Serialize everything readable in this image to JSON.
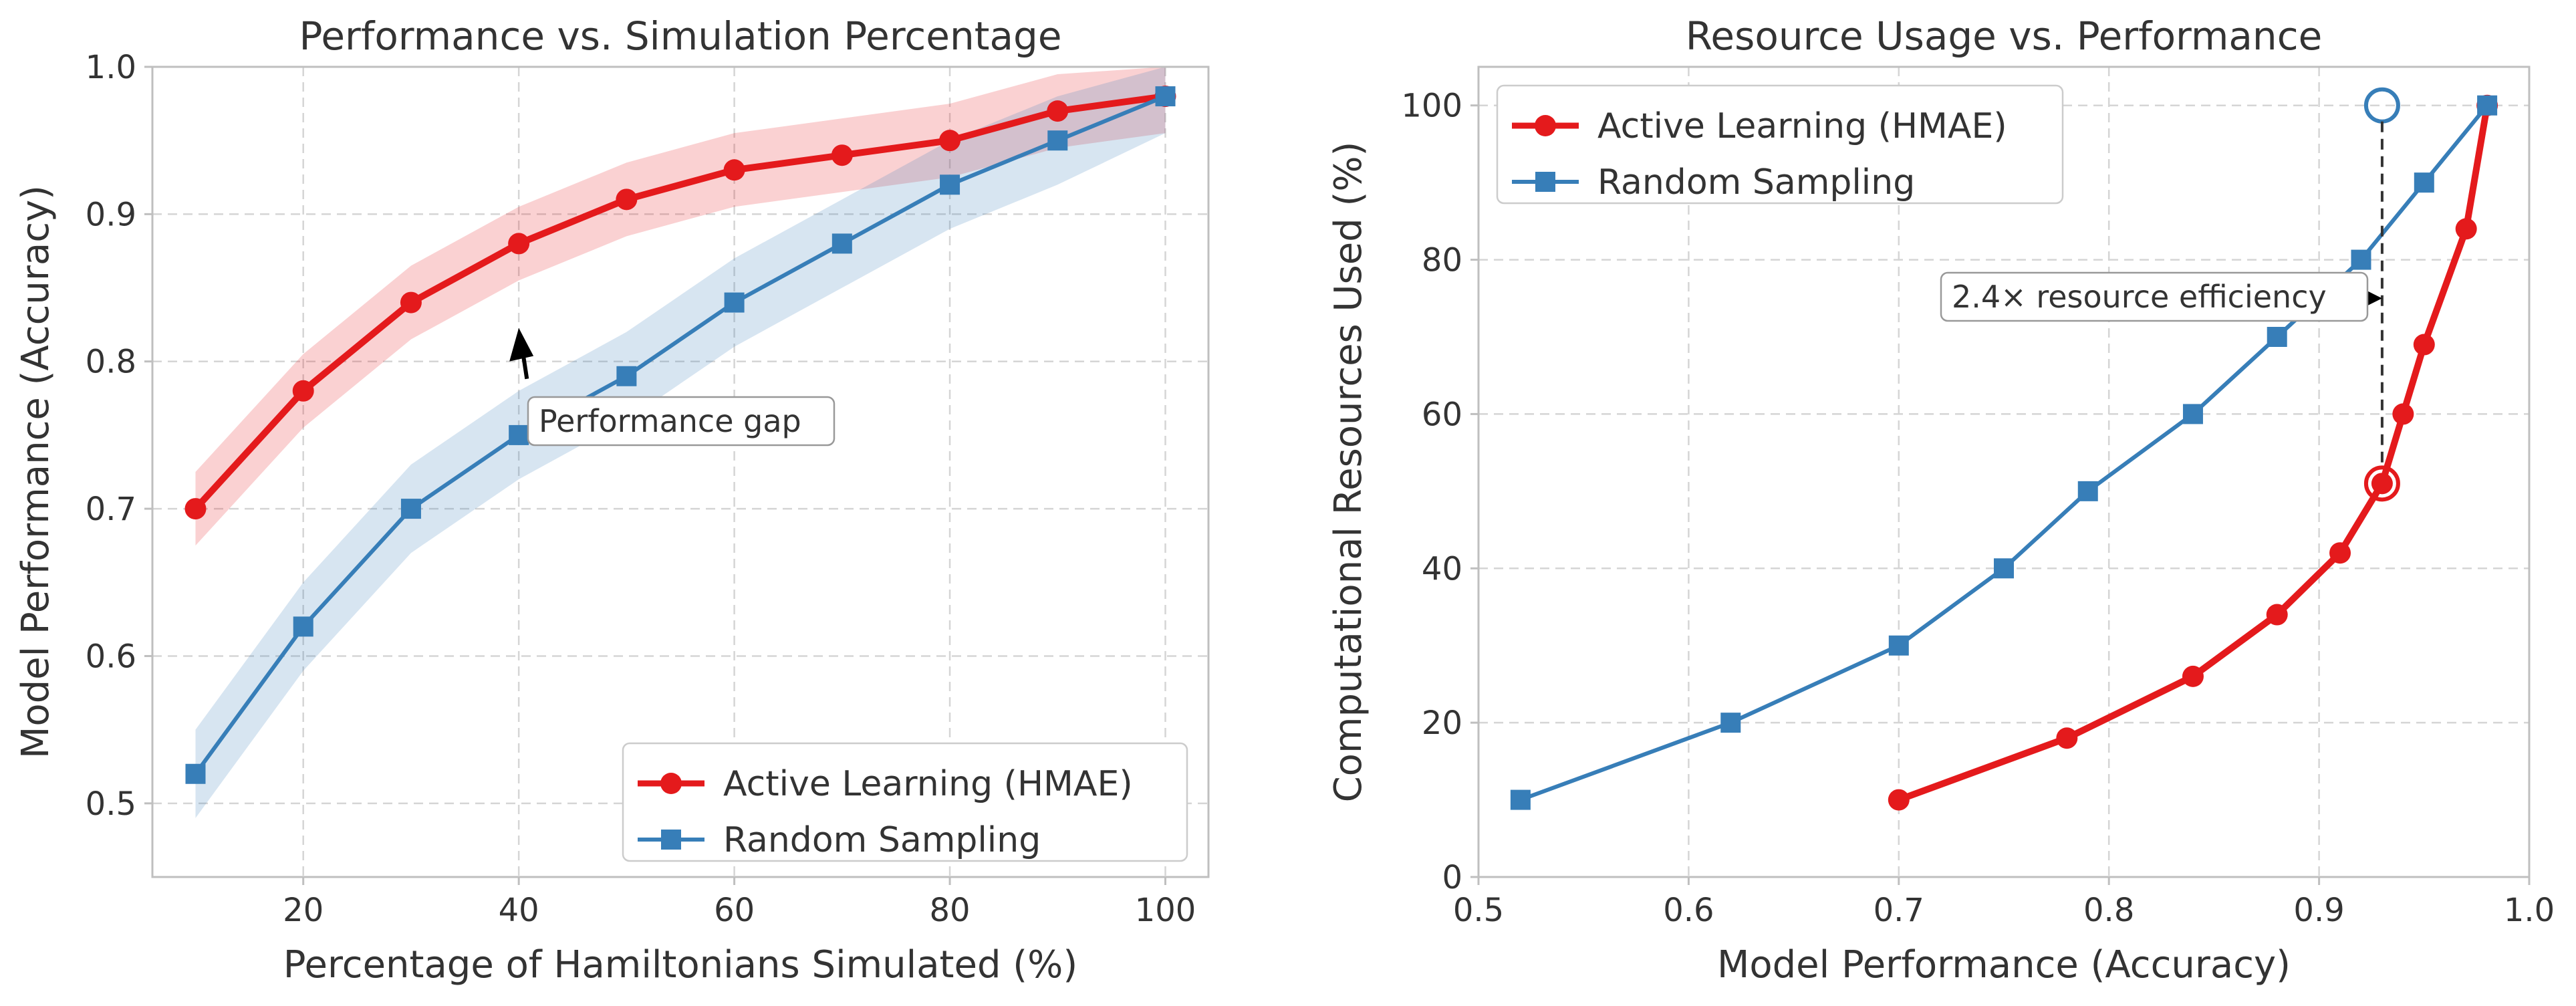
{
  "colors": {
    "active": "#e41a1c",
    "random": "#377eb8",
    "grid": "#d5d5d5",
    "frame": "#bfbfbf",
    "text": "#333333"
  },
  "chart_data": [
    {
      "type": "line",
      "title": "Performance vs. Simulation Percentage",
      "xlabel": "Percentage of Hamiltonians Simulated (%)",
      "ylabel": "Model Performance (Accuracy)",
      "xlim": [
        6,
        104
      ],
      "ylim": [
        0.45,
        1.0
      ],
      "xticks": [
        20,
        40,
        60,
        80,
        100
      ],
      "yticks": [
        0.5,
        0.6,
        0.7,
        0.8,
        0.9,
        1.0
      ],
      "ytick_labels": [
        "0.5",
        "0.6",
        "0.7",
        "0.8",
        "0.9",
        "1.0"
      ],
      "grid": true,
      "legend_position": "lower-right",
      "x": [
        10,
        20,
        30,
        40,
        50,
        60,
        70,
        80,
        90,
        100
      ],
      "series": [
        {
          "name": "Active Learning (HMAE)",
          "color": "#e41a1c",
          "marker": "circle",
          "values": [
            0.7,
            0.78,
            0.84,
            0.88,
            0.91,
            0.93,
            0.94,
            0.95,
            0.97,
            0.98
          ],
          "band_lower": [
            0.675,
            0.755,
            0.815,
            0.855,
            0.885,
            0.905,
            0.915,
            0.925,
            0.945,
            0.955
          ],
          "band_upper": [
            0.725,
            0.805,
            0.865,
            0.905,
            0.935,
            0.955,
            0.965,
            0.975,
            0.995,
            1.005
          ]
        },
        {
          "name": "Random Sampling",
          "color": "#377eb8",
          "marker": "square",
          "values": [
            0.52,
            0.62,
            0.7,
            0.75,
            0.79,
            0.84,
            0.88,
            0.92,
            0.95,
            0.98
          ],
          "band_lower": [
            0.49,
            0.59,
            0.67,
            0.72,
            0.76,
            0.81,
            0.85,
            0.89,
            0.92,
            0.955
          ],
          "band_upper": [
            0.55,
            0.65,
            0.73,
            0.78,
            0.82,
            0.87,
            0.91,
            0.95,
            0.98,
            1.005
          ]
        }
      ],
      "annotations": [
        {
          "text": "Performance gap",
          "arrow_from": [
            41,
            0.79
          ],
          "arrow_to": [
            40,
            0.82
          ]
        }
      ]
    },
    {
      "type": "line",
      "title": "Resource Usage vs. Performance",
      "xlabel": "Model Performance (Accuracy)",
      "ylabel": "Computational Resources Used (%)",
      "xlim": [
        0.5,
        1.0
      ],
      "ylim": [
        0,
        105
      ],
      "xticks": [
        0.5,
        0.6,
        0.7,
        0.8,
        0.9,
        1.0
      ],
      "xtick_labels": [
        "0.5",
        "0.6",
        "0.7",
        "0.8",
        "0.9",
        "1.0"
      ],
      "yticks": [
        0,
        20,
        40,
        60,
        80,
        100
      ],
      "grid": true,
      "legend_position": "upper-left",
      "series": [
        {
          "name": "Active Learning (HMAE)",
          "color": "#e41a1c",
          "marker": "circle",
          "x": [
            0.7,
            0.78,
            0.84,
            0.88,
            0.91,
            0.93,
            0.94,
            0.95,
            0.97,
            0.98
          ],
          "y": [
            10,
            18,
            26,
            34,
            42,
            51,
            60,
            69,
            84,
            100
          ]
        },
        {
          "name": "Random Sampling",
          "color": "#377eb8",
          "marker": "square",
          "x": [
            0.52,
            0.62,
            0.7,
            0.75,
            0.79,
            0.84,
            0.88,
            0.92,
            0.95,
            0.98
          ],
          "y": [
            10,
            20,
            30,
            40,
            50,
            60,
            70,
            80,
            90,
            100
          ]
        }
      ],
      "highlight_points": [
        {
          "x": 0.93,
          "y": 51,
          "color": "#e41a1c"
        },
        {
          "x": 0.93,
          "y": 100,
          "color": "#377eb8"
        }
      ],
      "annotations": [
        {
          "text": "2.4× resource efficiency",
          "arrow_to": [
            0.93,
            75
          ]
        }
      ]
    }
  ]
}
